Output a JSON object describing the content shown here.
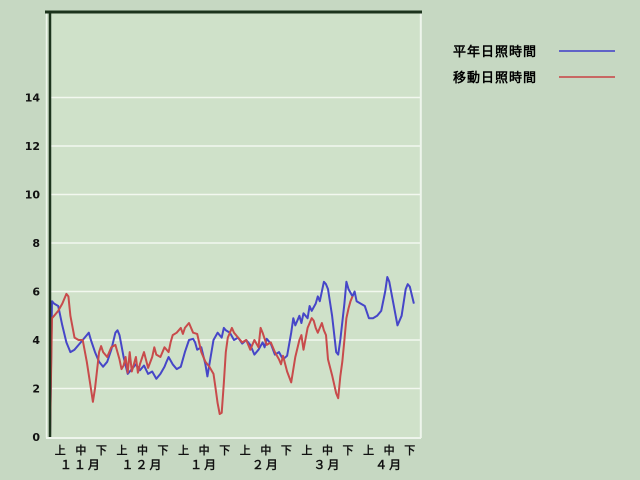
{
  "window": {
    "background": "#c6d8c2",
    "plot_background": "#cfe1c9",
    "frame_dark": "#1c331c",
    "gridline_color": "#f2f8ef"
  },
  "legend": {
    "items": [
      {
        "label": "平年日照時間",
        "color": "#4646c8",
        "key": "normal-sunshine"
      },
      {
        "label": "移動日照時間",
        "color": "#c84b4b",
        "key": "moving-sunshine"
      }
    ]
  },
  "chart_data": {
    "type": "line",
    "title": "",
    "xlabel": "",
    "ylabel": "",
    "grid": true,
    "legend_position": "top-right",
    "x_axis": {
      "months": [
        "１１月",
        "１２月",
        "１月",
        "２月",
        "３月",
        "４月"
      ],
      "periods": [
        "上",
        "中",
        "下"
      ],
      "days_total": 181
    },
    "y_axis": {
      "min": 0,
      "max": 17.5,
      "ticks": [
        0,
        2,
        4,
        6,
        8,
        10,
        12,
        14
      ]
    },
    "series": [
      {
        "name": "平年日照時間",
        "key": "normal-sunshine",
        "color": "#4646c8",
        "points": [
          [
            0,
            0
          ],
          [
            1,
            5.6
          ],
          [
            2,
            5.5
          ],
          [
            4,
            5.4
          ],
          [
            6,
            4.6
          ],
          [
            8,
            3.9
          ],
          [
            10,
            3.5
          ],
          [
            12,
            3.6
          ],
          [
            14,
            3.8
          ],
          [
            16,
            4.0
          ],
          [
            18,
            4.2
          ],
          [
            19,
            4.3
          ],
          [
            20,
            4.0
          ],
          [
            22,
            3.5
          ],
          [
            24,
            3.1
          ],
          [
            26,
            2.9
          ],
          [
            28,
            3.1
          ],
          [
            30,
            3.6
          ],
          [
            32,
            4.3
          ],
          [
            33,
            4.4
          ],
          [
            34,
            4.2
          ],
          [
            36,
            3.3
          ],
          [
            38,
            2.6
          ],
          [
            40,
            2.8
          ],
          [
            42,
            3.0
          ],
          [
            44,
            2.75
          ],
          [
            46,
            2.95
          ],
          [
            48,
            2.6
          ],
          [
            50,
            2.7
          ],
          [
            52,
            2.4
          ],
          [
            54,
            2.6
          ],
          [
            56,
            2.9
          ],
          [
            57,
            3.1
          ],
          [
            58,
            3.3
          ],
          [
            60,
            3.0
          ],
          [
            62,
            2.8
          ],
          [
            64,
            2.9
          ],
          [
            66,
            3.5
          ],
          [
            68,
            4.0
          ],
          [
            70,
            4.05
          ],
          [
            71,
            3.9
          ],
          [
            72,
            3.6
          ],
          [
            74,
            3.7
          ],
          [
            76,
            3.0
          ],
          [
            77,
            2.5
          ],
          [
            78,
            3.0
          ],
          [
            80,
            4.0
          ],
          [
            82,
            4.3
          ],
          [
            84,
            4.1
          ],
          [
            85,
            4.5
          ],
          [
            86,
            4.4
          ],
          [
            88,
            4.3
          ],
          [
            90,
            4.0
          ],
          [
            92,
            4.1
          ],
          [
            94,
            3.85
          ],
          [
            96,
            4.0
          ],
          [
            98,
            3.8
          ],
          [
            100,
            3.4
          ],
          [
            102,
            3.6
          ],
          [
            104,
            3.9
          ],
          [
            105,
            3.7
          ],
          [
            106,
            4.05
          ],
          [
            108,
            3.85
          ],
          [
            110,
            3.4
          ],
          [
            112,
            3.5
          ],
          [
            114,
            3.2
          ],
          [
            116,
            3.35
          ],
          [
            118,
            4.3
          ],
          [
            119,
            4.9
          ],
          [
            120,
            4.6
          ],
          [
            122,
            5.0
          ],
          [
            123,
            4.7
          ],
          [
            124,
            5.1
          ],
          [
            126,
            4.9
          ],
          [
            127,
            5.4
          ],
          [
            128,
            5.2
          ],
          [
            130,
            5.5
          ],
          [
            131,
            5.8
          ],
          [
            132,
            5.6
          ],
          [
            134,
            6.4
          ],
          [
            135,
            6.3
          ],
          [
            136,
            6.1
          ],
          [
            138,
            5.0
          ],
          [
            140,
            3.5
          ],
          [
            141,
            3.4
          ],
          [
            142,
            4.0
          ],
          [
            144,
            5.5
          ],
          [
            145,
            6.4
          ],
          [
            146,
            6.1
          ],
          [
            148,
            5.8
          ],
          [
            149,
            6.0
          ],
          [
            150,
            5.6
          ],
          [
            152,
            5.5
          ],
          [
            154,
            5.4
          ],
          [
            156,
            4.9
          ],
          [
            158,
            4.9
          ],
          [
            160,
            5.0
          ],
          [
            162,
            5.2
          ],
          [
            164,
            6.0
          ],
          [
            165,
            6.6
          ],
          [
            166,
            6.4
          ],
          [
            168,
            5.5
          ],
          [
            170,
            4.6
          ],
          [
            172,
            5.0
          ],
          [
            174,
            6.1
          ],
          [
            175,
            6.3
          ],
          [
            176,
            6.2
          ],
          [
            178,
            5.5
          ]
        ]
      },
      {
        "name": "移動日照時間",
        "key": "moving-sunshine",
        "color": "#c84b4b",
        "points": [
          [
            0,
            0
          ],
          [
            1,
            4.9
          ],
          [
            2,
            5.0
          ],
          [
            4,
            5.2
          ],
          [
            6,
            5.5
          ],
          [
            8,
            5.9
          ],
          [
            9,
            5.8
          ],
          [
            10,
            5.0
          ],
          [
            12,
            4.1
          ],
          [
            14,
            4.0
          ],
          [
            16,
            4.0
          ],
          [
            18,
            3.1
          ],
          [
            20,
            2.0
          ],
          [
            21,
            1.45
          ],
          [
            22,
            2.0
          ],
          [
            24,
            3.5
          ],
          [
            25,
            3.75
          ],
          [
            26,
            3.5
          ],
          [
            28,
            3.3
          ],
          [
            30,
            3.7
          ],
          [
            32,
            3.8
          ],
          [
            34,
            3.2
          ],
          [
            35,
            2.8
          ],
          [
            36,
            2.95
          ],
          [
            37,
            3.3
          ],
          [
            38,
            2.65
          ],
          [
            39,
            3.5
          ],
          [
            40,
            2.7
          ],
          [
            42,
            3.3
          ],
          [
            43,
            2.65
          ],
          [
            44,
            3.0
          ],
          [
            46,
            3.5
          ],
          [
            48,
            2.85
          ],
          [
            50,
            3.3
          ],
          [
            51,
            3.7
          ],
          [
            52,
            3.4
          ],
          [
            54,
            3.3
          ],
          [
            56,
            3.7
          ],
          [
            58,
            3.5
          ],
          [
            59,
            3.9
          ],
          [
            60,
            4.2
          ],
          [
            62,
            4.3
          ],
          [
            64,
            4.5
          ],
          [
            65,
            4.25
          ],
          [
            66,
            4.5
          ],
          [
            68,
            4.7
          ],
          [
            70,
            4.3
          ],
          [
            72,
            4.25
          ],
          [
            74,
            3.5
          ],
          [
            76,
            3.1
          ],
          [
            78,
            2.9
          ],
          [
            80,
            2.6
          ],
          [
            81,
            2.0
          ],
          [
            82,
            1.4
          ],
          [
            83,
            0.95
          ],
          [
            84,
            1.0
          ],
          [
            85,
            2.2
          ],
          [
            86,
            3.5
          ],
          [
            87,
            4.1
          ],
          [
            88,
            4.3
          ],
          [
            89,
            4.5
          ],
          [
            90,
            4.3
          ],
          [
            92,
            4.1
          ],
          [
            94,
            3.9
          ],
          [
            96,
            4.0
          ],
          [
            98,
            3.6
          ],
          [
            100,
            4.0
          ],
          [
            102,
            3.7
          ],
          [
            103,
            4.5
          ],
          [
            104,
            4.3
          ],
          [
            106,
            3.8
          ],
          [
            108,
            3.9
          ],
          [
            110,
            3.5
          ],
          [
            112,
            3.2
          ],
          [
            113,
            3.0
          ],
          [
            114,
            3.35
          ],
          [
            116,
            2.7
          ],
          [
            118,
            2.25
          ],
          [
            120,
            3.3
          ],
          [
            122,
            4.0
          ],
          [
            123,
            4.2
          ],
          [
            124,
            3.6
          ],
          [
            126,
            4.5
          ],
          [
            128,
            4.9
          ],
          [
            129,
            4.8
          ],
          [
            130,
            4.5
          ],
          [
            131,
            4.3
          ],
          [
            132,
            4.5
          ],
          [
            133,
            4.7
          ],
          [
            134,
            4.4
          ],
          [
            135,
            4.2
          ],
          [
            136,
            3.2
          ],
          [
            138,
            2.55
          ],
          [
            140,
            1.8
          ],
          [
            141,
            1.6
          ],
          [
            142,
            2.5
          ],
          [
            143,
            3.1
          ],
          [
            144,
            4.0
          ],
          [
            145,
            4.9
          ],
          [
            146,
            5.3
          ],
          [
            147,
            5.6
          ],
          [
            148,
            5.8
          ]
        ]
      }
    ]
  }
}
